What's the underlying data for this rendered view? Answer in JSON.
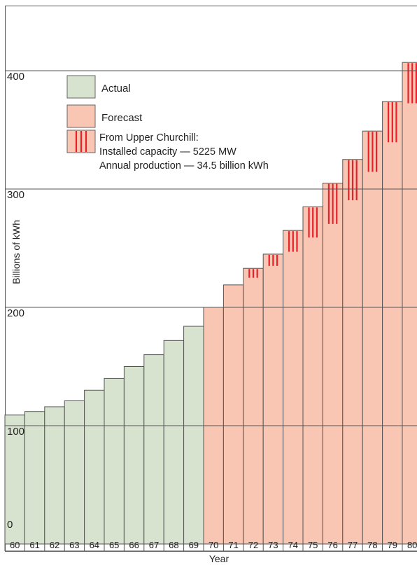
{
  "chart_data": {
    "type": "bar",
    "xlabel": "Year",
    "ylabel": "Billions of kWh",
    "ylim": [
      0,
      410
    ],
    "yticks": [
      "0",
      "100",
      "200",
      "300",
      "400"
    ],
    "grid": true,
    "legend_position": "top-left",
    "categories": [
      "60",
      "61",
      "62",
      "63",
      "64",
      "65",
      "66",
      "67",
      "68",
      "69",
      "70",
      "71",
      "72",
      "73",
      "74",
      "75",
      "76",
      "77",
      "78",
      "79",
      "80"
    ],
    "series": [
      {
        "name": "Actual",
        "color": "#d7e3cf",
        "values": [
          109,
          112,
          116,
          121,
          130,
          140,
          150,
          160,
          172,
          184,
          null,
          null,
          null,
          null,
          null,
          null,
          null,
          null,
          null,
          null,
          null
        ]
      },
      {
        "name": "Forecast",
        "color": "#f8c6b2",
        "values": [
          null,
          null,
          null,
          null,
          null,
          null,
          null,
          null,
          null,
          null,
          200,
          219,
          233,
          245,
          265,
          285,
          305,
          325,
          349,
          374,
          407
        ]
      },
      {
        "name": "From Upper Churchill:",
        "color": "#e8202a",
        "values": [
          null,
          null,
          null,
          null,
          null,
          null,
          null,
          null,
          null,
          null,
          0,
          0,
          8,
          10,
          18,
          26,
          34.5,
          34.5,
          34.5,
          34.5,
          34.5
        ]
      }
    ],
    "legend": [
      {
        "label": "Actual",
        "swatch": "actual"
      },
      {
        "label": "Forecast",
        "swatch": "forecast"
      },
      {
        "label": "From Upper Churchill:",
        "swatch": "churchill",
        "extra_lines": [
          "Installed capacity — 5225 MW",
          "Annual production — 34.5 billion kWh"
        ]
      }
    ]
  }
}
